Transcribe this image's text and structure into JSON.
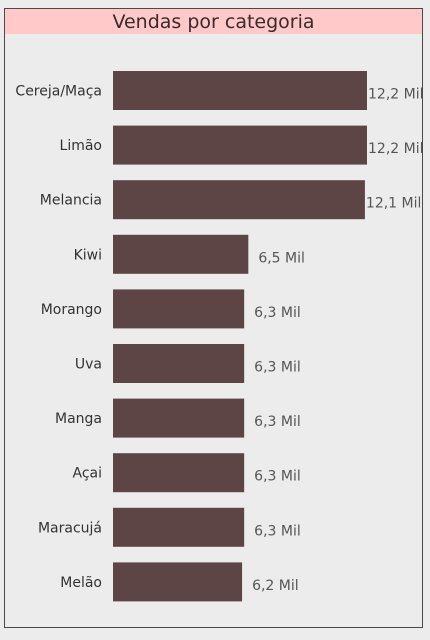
{
  "chart_data": {
    "type": "bar",
    "orientation": "horizontal",
    "title": "Vendas por categoria",
    "categories": [
      "Cereja/Maça",
      "Limão",
      "Melancia",
      "Kiwi",
      "Morango",
      "Uva",
      "Manga",
      "Açai",
      "Maracujá",
      "Melão"
    ],
    "values": [
      12.2,
      12.2,
      12.1,
      6.5,
      6.3,
      6.3,
      6.3,
      6.3,
      6.3,
      6.2
    ],
    "value_labels": [
      "12,2 Mil",
      "12,2 Mil",
      "12,1 Mil",
      "6,5 Mil",
      "6,3 Mil",
      "6,3 Mil",
      "6,3 Mil",
      "6,3 Mil",
      "6,3 Mil",
      "6,2 Mil"
    ],
    "xlim": [
      0,
      12.2
    ],
    "grid": false,
    "legend": "none",
    "bar_color": "#5e4545",
    "title_background": "#ffc9c9"
  }
}
